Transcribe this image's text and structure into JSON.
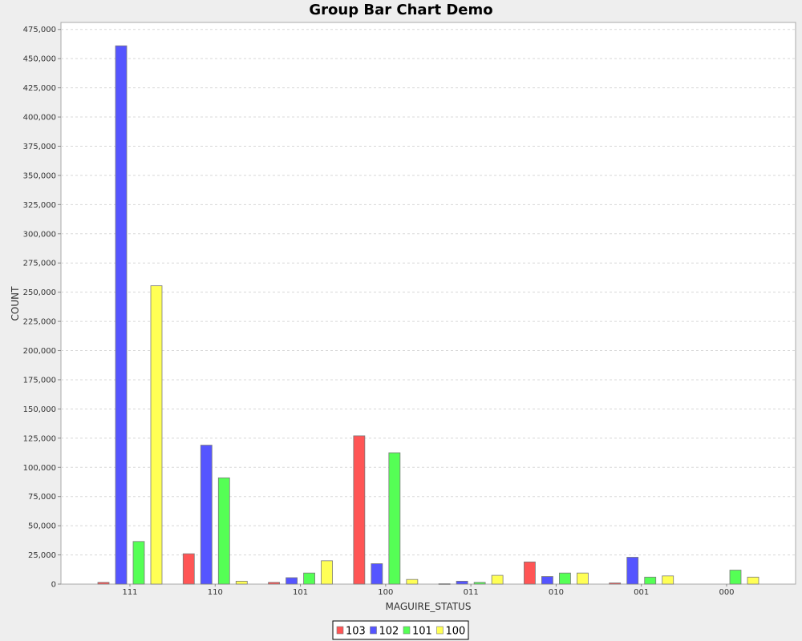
{
  "chart_data": {
    "type": "bar",
    "title": "Group Bar Chart Demo",
    "xlabel": "MAGUIRE_STATUS",
    "ylabel": "COUNT",
    "ylim": [
      0,
      481000
    ],
    "yticks": [
      0,
      25000,
      50000,
      75000,
      100000,
      125000,
      150000,
      175000,
      200000,
      225000,
      250000,
      275000,
      300000,
      325000,
      350000,
      375000,
      400000,
      425000,
      450000,
      475000
    ],
    "ytick_labels": [
      "0",
      "25,000",
      "50,000",
      "75,000",
      "100,000",
      "125,000",
      "150,000",
      "175,000",
      "200,000",
      "225,000",
      "250,000",
      "275,000",
      "300,000",
      "325,000",
      "350,000",
      "375,000",
      "400,000",
      "425,000",
      "450,000",
      "475,000"
    ],
    "categories": [
      "111",
      "110",
      "101",
      "100",
      "011",
      "010",
      "001",
      "000"
    ],
    "series": [
      {
        "name": "103",
        "color": "#ff5555",
        "values": [
          1500,
          26000,
          1500,
          127000,
          300,
          19000,
          1000,
          0
        ]
      },
      {
        "name": "102",
        "color": "#5555ff",
        "values": [
          461000,
          119000,
          5500,
          17500,
          2500,
          6500,
          23000,
          0
        ]
      },
      {
        "name": "101",
        "color": "#55ff55",
        "values": [
          36500,
          91000,
          9500,
          112500,
          1500,
          9500,
          6000,
          12000
        ]
      },
      {
        "name": "100",
        "color": "#ffff55",
        "values": [
          255500,
          2500,
          20000,
          4000,
          7500,
          9500,
          7000,
          6000
        ]
      }
    ],
    "grid": true,
    "legend_position": "bottom"
  }
}
